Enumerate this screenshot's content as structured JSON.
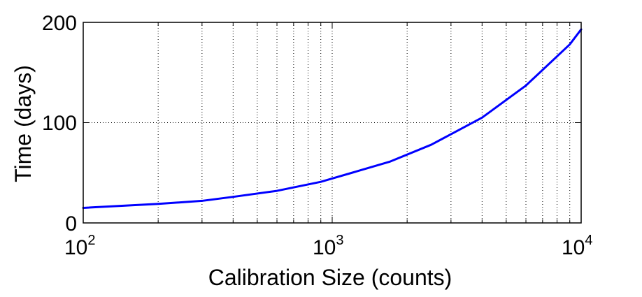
{
  "chart_data": {
    "type": "line",
    "title": "",
    "xlabel": "Calibration Size (counts)",
    "ylabel": "Time (days)",
    "xscale": "log",
    "xlim": [
      100,
      10000
    ],
    "ylim": [
      0,
      200
    ],
    "grid": true,
    "x_ticks": [
      {
        "base": "10",
        "exp": "2"
      },
      {
        "base": "10",
        "exp": "3"
      },
      {
        "base": "10",
        "exp": "4"
      }
    ],
    "y_ticks": [
      "0",
      "100",
      "200"
    ],
    "series": [
      {
        "color": "#0000ff",
        "x": [
          100,
          200,
          300,
          400,
          600,
          900,
          1200,
          1700,
          2500,
          4000,
          6000,
          9000,
          10000
        ],
        "y": [
          15,
          19,
          22,
          26,
          32,
          41,
          50,
          61,
          78,
          105,
          137,
          178,
          193
        ]
      }
    ]
  }
}
